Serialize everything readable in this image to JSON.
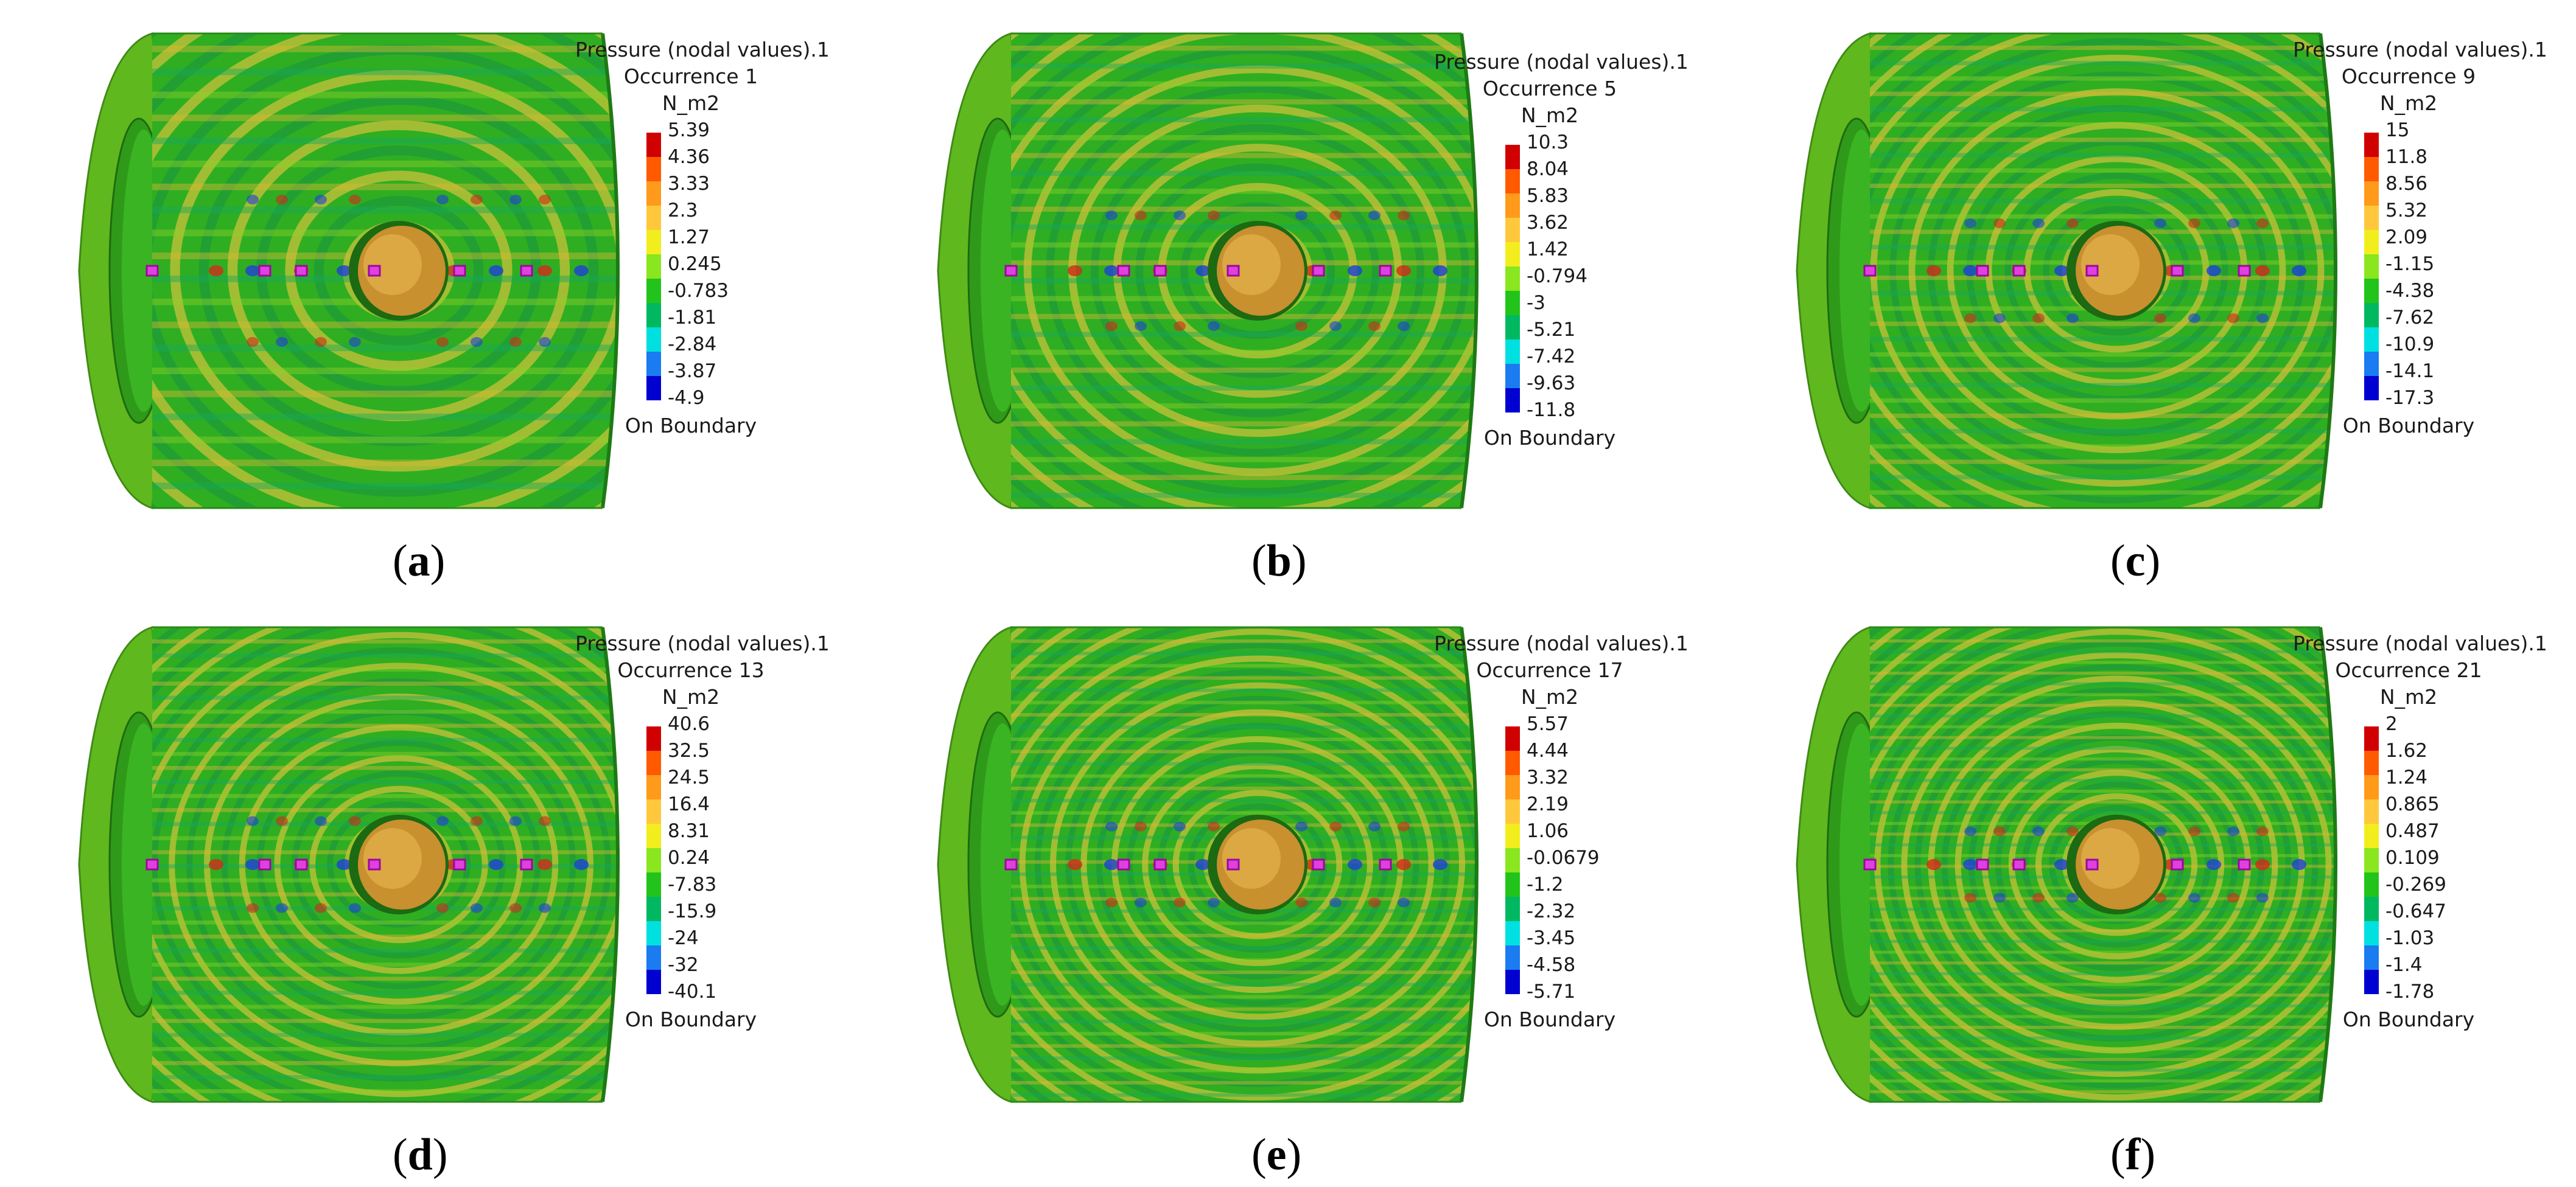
{
  "colormap": [
    "#d10000",
    "#ff5a00",
    "#ff9a1a",
    "#ffc83c",
    "#f2ee1e",
    "#8ae61e",
    "#22c41c",
    "#00b860",
    "#00e0e0",
    "#1a7cf0",
    "#0000d0"
  ],
  "panels": [
    {
      "label": "a",
      "title": "Pressure (nodal values).1",
      "occurrence": "Occurrence 1",
      "unit": "N_m2",
      "ticks": [
        "5.39",
        "4.36",
        "3.33",
        "2.3",
        "1.27",
        "0.245",
        "-0.783",
        "-1.81",
        "-2.84",
        "-3.87",
        "-4.9"
      ],
      "boundary": "On Boundary"
    },
    {
      "label": "b",
      "title": "Pressure (nodal values).1",
      "occurrence": "Occurrence 5",
      "unit": "N_m2",
      "ticks": [
        "10.3",
        "8.04",
        "5.83",
        "3.62",
        "1.42",
        "-0.794",
        "-3",
        "-5.21",
        "-7.42",
        "-9.63",
        "-11.8"
      ],
      "boundary": "On Boundary"
    },
    {
      "label": "c",
      "title": "Pressure (nodal values).1",
      "occurrence": "Occurrence 9",
      "unit": "N_m2",
      "ticks": [
        "15",
        "11.8",
        "8.56",
        "5.32",
        "2.09",
        "-1.15",
        "-4.38",
        "-7.62",
        "-10.9",
        "-14.1",
        "-17.3"
      ],
      "boundary": "On Boundary"
    },
    {
      "label": "d",
      "title": "Pressure (nodal values).1",
      "occurrence": "Occurrence 13",
      "unit": "N_m2",
      "ticks": [
        "40.6",
        "32.5",
        "24.5",
        "16.4",
        "8.31",
        "0.24",
        "-7.83",
        "-15.9",
        "-24",
        "-32",
        "-40.1"
      ],
      "boundary": "On Boundary"
    },
    {
      "label": "e",
      "title": "Pressure (nodal values).1",
      "occurrence": "Occurrence 17",
      "unit": "N_m2",
      "ticks": [
        "5.57",
        "4.44",
        "3.32",
        "2.19",
        "1.06",
        "-0.0679",
        "-1.2",
        "-2.32",
        "-3.45",
        "-4.58",
        "-5.71"
      ],
      "boundary": "On Boundary"
    },
    {
      "label": "f",
      "title": "Pressure (nodal values).1",
      "occurrence": "Occurrence 21",
      "unit": "N_m2",
      "ticks": [
        "2",
        "1.62",
        "1.24",
        "0.865",
        "0.487",
        "0.109",
        "-0.269",
        "-0.647",
        "-1.03",
        "-1.4",
        "-1.78"
      ],
      "boundary": "On Boundary"
    }
  ]
}
